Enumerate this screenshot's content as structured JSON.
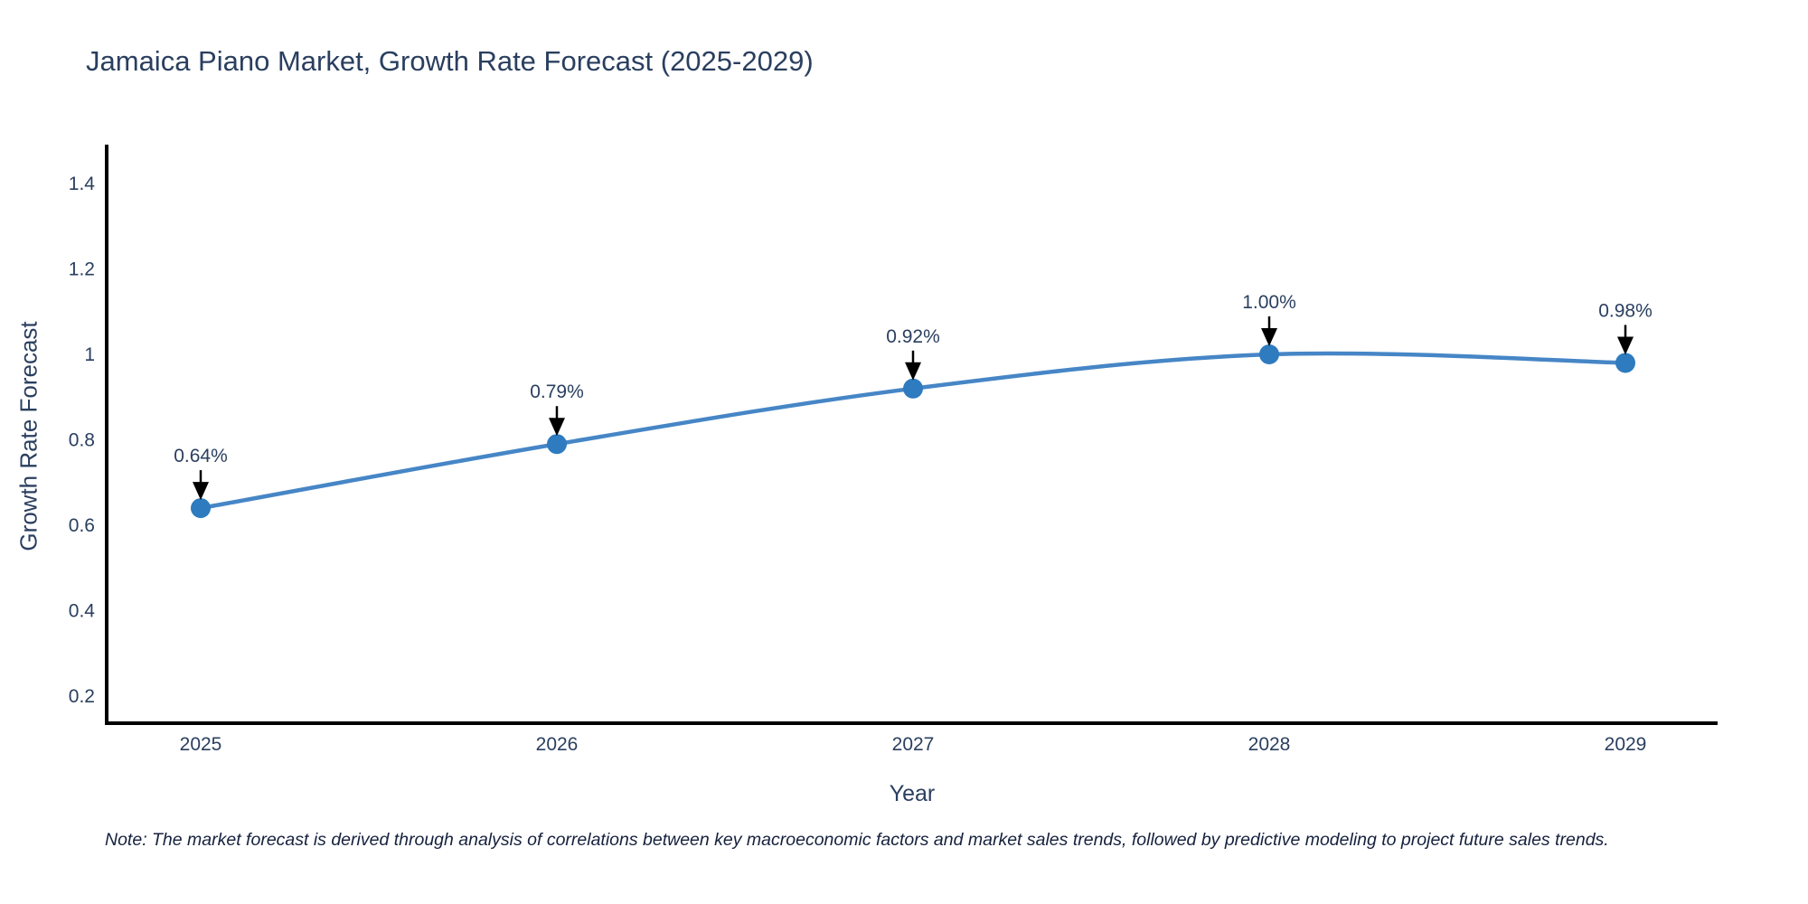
{
  "chart_data": {
    "type": "line",
    "title": "Jamaica Piano Market, Growth Rate Forecast (2025-2029)",
    "xlabel": "Year",
    "ylabel": "Growth Rate Forecast",
    "categories": [
      "2025",
      "2026",
      "2027",
      "2028",
      "2029"
    ],
    "series": [
      {
        "name": "Growth Rate Forecast",
        "values": [
          0.64,
          0.79,
          0.92,
          1.0,
          0.98
        ]
      }
    ],
    "point_labels": [
      "0.64%",
      "0.79%",
      "0.92%",
      "1.00%",
      "0.98%"
    ],
    "ytick_labels": [
      "0.2",
      "0.4",
      "0.6",
      "0.8",
      "1",
      "1.2",
      "1.4"
    ],
    "yticks": [
      0.2,
      0.4,
      0.6,
      0.8,
      1.0,
      1.2,
      1.4
    ],
    "ylim": [
      0.136,
      1.49
    ],
    "line_shape": "spline",
    "grid": false,
    "legend": "none",
    "annotation_style": "down-arrow-to-point",
    "colors": {
      "line": "#4686c6",
      "marker": "#2e7bbf",
      "axis": "#000000",
      "arrow": "#000000",
      "text": "#2a3f5f"
    },
    "note": "Note: The market forecast is derived through analysis of correlations between key macroeconomic factors and market sales trends, followed by predictive modeling to project future sales trends."
  }
}
